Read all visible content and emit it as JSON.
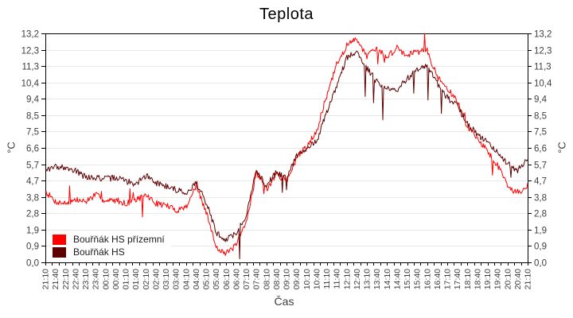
{
  "window": {
    "title": "Teplota"
  },
  "colors": {
    "background": "#ffffff",
    "axis": "#000000",
    "grid": "#e8e8e8",
    "tick_label": "#3d3d3d",
    "series_prizemni": "#ff0000",
    "series_hs": "#5e0000"
  },
  "chart_data": {
    "type": "line",
    "title": "Teplota",
    "xlabel": "Čas",
    "ylabel_left": "°C",
    "ylabel_right": "°C",
    "ylim": [
      0,
      13.2
    ],
    "grid": "horizontal-only",
    "legend_position": "inside-bottom-left",
    "ytick_labels": [
      "0,0",
      "0,9",
      "1,9",
      "2,8",
      "3,8",
      "4,7",
      "5,7",
      "6,6",
      "7,5",
      "8,5",
      "9,4",
      "10,4",
      "11,3",
      "12,3",
      "13,2"
    ],
    "x_categories": [
      "21:10",
      "21:40",
      "22:10",
      "22:40",
      "23:10",
      "23:40",
      "00:10",
      "00:40",
      "01:10",
      "01:40",
      "02:10",
      "02:40",
      "03:10",
      "03:40",
      "04:10",
      "04:40",
      "05:10",
      "05:40",
      "06:10",
      "06:40",
      "07:10",
      "07:40",
      "08:10",
      "08:40",
      "09:10",
      "09:40",
      "10:10",
      "10:40",
      "11:10",
      "11:40",
      "12:10",
      "12:40",
      "13:10",
      "13:40",
      "14:10",
      "14:40",
      "15:10",
      "15:40",
      "16:10",
      "16:40",
      "17:10",
      "17:40",
      "18:10",
      "18:40",
      "19:10",
      "19:40",
      "20:10",
      "20:40",
      "21:10"
    ],
    "x_minor_ticks_per_axis": 72,
    "series": [
      {
        "name": "Bouřňák HS přízemní",
        "color": "#ff0000",
        "values": [
          4.1,
          3.5,
          3.4,
          3.6,
          3.5,
          3.9,
          3.5,
          3.6,
          3.4,
          3.6,
          3.9,
          3.4,
          3.3,
          3.0,
          3.2,
          4.4,
          2.9,
          0.9,
          0.5,
          1.0,
          2.3,
          5.2,
          4.2,
          5.1,
          4.7,
          6.0,
          6.7,
          7.6,
          9.6,
          11.4,
          12.5,
          12.9,
          11.9,
          12.3,
          11.8,
          12.4,
          11.9,
          12.3,
          12.2,
          10.7,
          10.0,
          9.3,
          7.8,
          7.2,
          6.4,
          5.6,
          4.5,
          3.9,
          4.4
        ]
      },
      {
        "name": "Bouřňák HS",
        "color": "#5e0000",
        "values": [
          5.3,
          5.5,
          5.5,
          5.3,
          4.9,
          4.9,
          4.8,
          4.9,
          4.7,
          4.5,
          5.0,
          4.6,
          4.4,
          4.2,
          4.0,
          4.6,
          3.5,
          1.7,
          1.3,
          1.7,
          2.7,
          5.3,
          4.4,
          5.2,
          4.9,
          6.1,
          6.6,
          7.0,
          8.6,
          10.2,
          11.8,
          12.2,
          11.2,
          10.4,
          10.0,
          9.9,
          10.6,
          11.1,
          11.3,
          10.3,
          9.5,
          9.0,
          8.0,
          7.4,
          6.9,
          6.4,
          5.7,
          5.3,
          6.0
        ]
      }
    ],
    "style": {
      "jitter": 0.18,
      "samples_per_interval": 12,
      "series_spikes": [
        {
          "chance": 0.018,
          "dir": "both",
          "min": 0.3,
          "max": 1.2
        },
        {
          "chance": 0.028,
          "dir": "down",
          "min": 0.5,
          "max": 2.4
        }
      ]
    }
  }
}
